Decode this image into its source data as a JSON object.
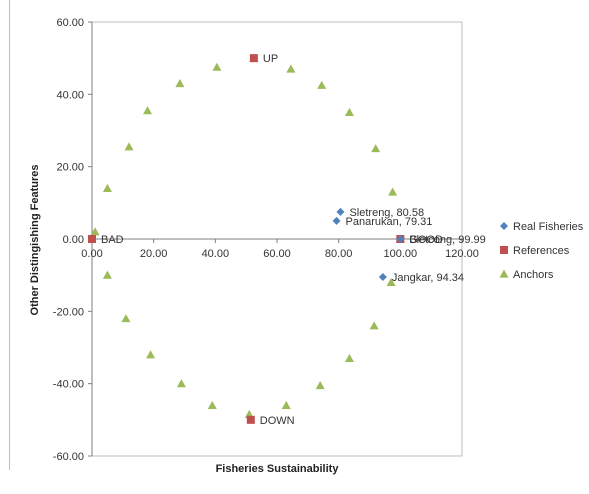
{
  "chart_data": {
    "type": "scatter",
    "title": "",
    "xlabel": "Fisheries Sustainability",
    "ylabel": "Other Distingishing Features",
    "xlim": [
      0,
      120
    ],
    "ylim": [
      -60,
      60
    ],
    "x_ticks": [
      "0.00",
      "20.00",
      "40.00",
      "60.00",
      "80.00",
      "100.00",
      "120.00"
    ],
    "y_ticks": [
      "60.00",
      "40.00",
      "20.00",
      "0.00",
      "-20.00",
      "-40.00",
      "-60.00"
    ],
    "grid": false,
    "legend_position": "right",
    "series": [
      {
        "name": "Real Fisheries",
        "marker": "diamond",
        "color": "#4f81bd",
        "points": [
          {
            "x": 80.58,
            "y": 7.5,
            "label": "Sletreng, 80.58"
          },
          {
            "x": 79.31,
            "y": 5.0,
            "label": "Panarukan, 79.31"
          },
          {
            "x": 99.99,
            "y": 0.0,
            "label": "Bletcong, 99.99"
          },
          {
            "x": 94.34,
            "y": -10.5,
            "label": "Jangkar, 94.34"
          }
        ]
      },
      {
        "name": "References",
        "marker": "square",
        "color": "#c0504d",
        "points": [
          {
            "x": 52.5,
            "y": 50.0,
            "label": "UP"
          },
          {
            "x": 0.0,
            "y": 0.0,
            "label": "BAD"
          },
          {
            "x": 100.0,
            "y": 0.0,
            "label": "GOOD"
          },
          {
            "x": 51.5,
            "y": -50.0,
            "label": "DOWN"
          }
        ]
      },
      {
        "name": "Anchors",
        "marker": "triangle",
        "color": "#9bbb59",
        "points": [
          {
            "x": 52.5,
            "y": 50.0
          },
          {
            "x": 40.5,
            "y": 47.5
          },
          {
            "x": 64.5,
            "y": 47.0
          },
          {
            "x": 28.5,
            "y": 43.0
          },
          {
            "x": 74.5,
            "y": 42.5
          },
          {
            "x": 18.0,
            "y": 35.5
          },
          {
            "x": 83.5,
            "y": 35.0
          },
          {
            "x": 12.0,
            "y": 25.5
          },
          {
            "x": 92.0,
            "y": 25.0
          },
          {
            "x": 5.0,
            "y": 14.0
          },
          {
            "x": 97.5,
            "y": 13.0
          },
          {
            "x": 1.0,
            "y": 2.0
          },
          {
            "x": 100.0,
            "y": 0.0
          },
          {
            "x": 5.0,
            "y": -10.0
          },
          {
            "x": 97.0,
            "y": -12.0
          },
          {
            "x": 11.0,
            "y": -22.0
          },
          {
            "x": 91.5,
            "y": -24.0
          },
          {
            "x": 19.0,
            "y": -32.0
          },
          {
            "x": 83.5,
            "y": -33.0
          },
          {
            "x": 29.0,
            "y": -40.0
          },
          {
            "x": 74.0,
            "y": -40.5
          },
          {
            "x": 39.0,
            "y": -46.0
          },
          {
            "x": 63.0,
            "y": -46.0
          },
          {
            "x": 51.0,
            "y": -48.5
          }
        ]
      }
    ]
  }
}
